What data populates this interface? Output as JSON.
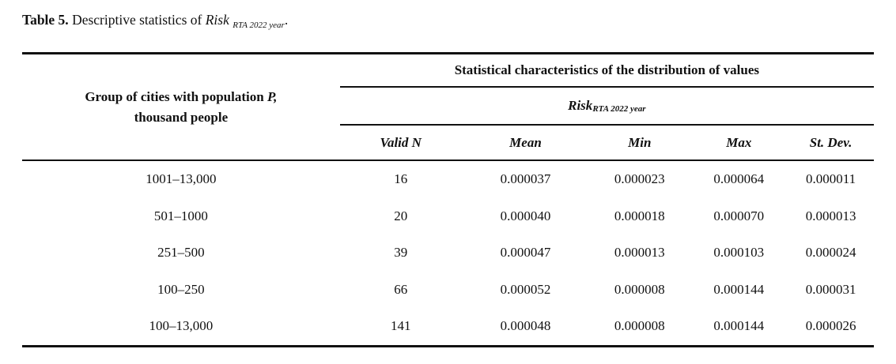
{
  "caption": {
    "label": "Table 5.",
    "text": " Descriptive statistics of ",
    "risk": "Risk",
    "risk_sub": "RTA 2022 year",
    "suffix": "."
  },
  "table": {
    "group_header": {
      "line1_prefix": "Group of cities with population ",
      "line1_var": "P,",
      "line2": "thousand people"
    },
    "span_header": "Statistical characteristics of the distribution of values",
    "risk_header": {
      "label": "Risk",
      "sub": "RTA 2022 year"
    },
    "columns": {
      "valid_n": "Valid N",
      "mean": "Mean",
      "min": "Min",
      "max": "Max",
      "st_dev": "St. Dev."
    },
    "rows": [
      {
        "group": "1001–13,000",
        "valid_n": "16",
        "mean": "0.000037",
        "min": "0.000023",
        "max": "0.000064",
        "st_dev": "0.000011"
      },
      {
        "group": "501–1000",
        "valid_n": "20",
        "mean": "0.000040",
        "min": "0.000018",
        "max": "0.000070",
        "st_dev": "0.000013"
      },
      {
        "group": "251–500",
        "valid_n": "39",
        "mean": "0.000047",
        "min": "0.000013",
        "max": "0.000103",
        "st_dev": "0.000024"
      },
      {
        "group": "100–250",
        "valid_n": "66",
        "mean": "0.000052",
        "min": "0.000008",
        "max": "0.000144",
        "st_dev": "0.000031"
      },
      {
        "group": "100–13,000",
        "valid_n": "141",
        "mean": "0.000048",
        "min": "0.000008",
        "max": "0.000144",
        "st_dev": "0.000026"
      }
    ],
    "colors": {
      "text": "#111111",
      "rule": "#111111",
      "background": "#ffffff"
    }
  }
}
